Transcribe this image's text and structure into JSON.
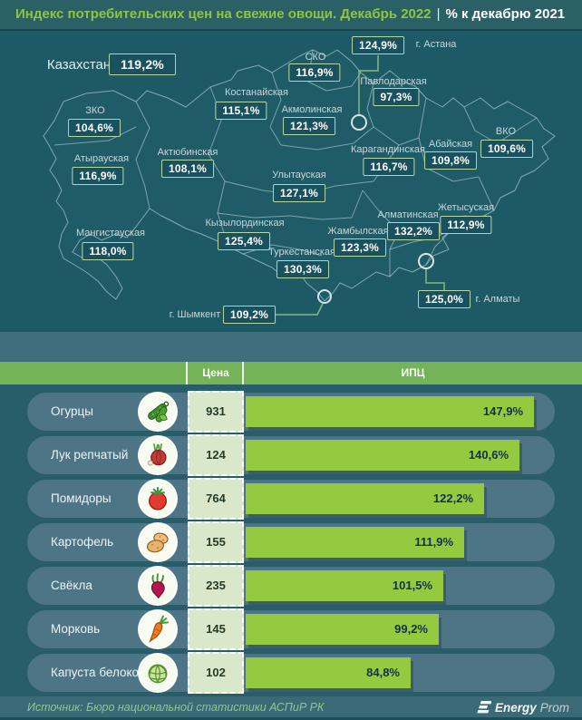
{
  "header": {
    "title_green": "Индекс потребительских цен на свежие овощи. Декабрь 2022",
    "divider": "|",
    "title_white": "% к декабрю 2021"
  },
  "map": {
    "regions": [
      {
        "label": "Казахстан",
        "value": "119,2%"
      },
      {
        "label": "г. Астана",
        "value": "124,9%"
      },
      {
        "label": "СКО",
        "value": "116,9%"
      },
      {
        "label": "Павлодарская",
        "value": "97,3%"
      },
      {
        "label": "Костанайская",
        "value": "115,1%"
      },
      {
        "label": "Акмолинская",
        "value": "121,3%"
      },
      {
        "label": "Актюбинская",
        "value": "108,1%"
      },
      {
        "label": "ЗКО",
        "value": "104,6%"
      },
      {
        "label": "Атырауская",
        "value": "116,9%"
      },
      {
        "label": "Улытауская",
        "value": "127,1%"
      },
      {
        "label": "Карагандинская",
        "value": "116,7%"
      },
      {
        "label": "Абайская",
        "value": "109,8%"
      },
      {
        "label": "ВКО",
        "value": "109,6%"
      },
      {
        "label": "Мангистауская",
        "value": "118,0%"
      },
      {
        "label": "Кызылординская",
        "value": "125,4%"
      },
      {
        "label": "Туркестанская",
        "value": "130,3%"
      },
      {
        "label": "Жамбылская",
        "value": "123,3%"
      },
      {
        "label": "Алматинская",
        "value": "132,2%"
      },
      {
        "label": "Жетысуская",
        "value": "112,9%"
      },
      {
        "label": "г. Шымкент",
        "value": "109,2%"
      },
      {
        "label": "г. Алматы",
        "value": "125,0%"
      }
    ]
  },
  "table": {
    "price_header": "Цена",
    "ipc_header": "ИПЦ",
    "rows": [
      {
        "name": "Огурцы",
        "icon": "cucumber-icon",
        "price": "931",
        "ipc": "147,9%"
      },
      {
        "name": "Лук репчатый",
        "icon": "onion-icon",
        "price": "124",
        "ipc": "140,6%"
      },
      {
        "name": "Помидоры",
        "icon": "tomato-icon",
        "price": "764",
        "ipc": "122,2%"
      },
      {
        "name": "Картофель",
        "icon": "potato-icon",
        "price": "155",
        "ipc": "111,9%"
      },
      {
        "name": "Свёкла",
        "icon": "beet-icon",
        "price": "235",
        "ipc": "101,5%"
      },
      {
        "name": "Морковь",
        "icon": "carrot-icon",
        "price": "145",
        "ipc": "99,2%"
      },
      {
        "name": "Капуста белокочанная",
        "icon": "cabbage-icon",
        "price": "102",
        "ipc": "84,8%"
      }
    ]
  },
  "footer": {
    "source": "Источник: Бюро национальной статистики АСПиР РК",
    "brand_bold": "Energy",
    "brand_light": "Prom"
  },
  "colors": {
    "accent_green": "#8ec63f",
    "bar_green": "#95c940",
    "header_band_green": "#74b357",
    "map_background": "#1e5a66",
    "row_pill": "#4e7585",
    "price_cell": "#d9e8ca"
  },
  "chart_data": {
    "type": "bar",
    "title": "Индекс потребительских цен на свежие овощи. Декабрь 2022 | % к декабрю 2021",
    "categories": [
      "Огурцы",
      "Лук репчатый",
      "Помидоры",
      "Картофель",
      "Свёкла",
      "Морковь",
      "Капуста белокочанная"
    ],
    "series": [
      {
        "name": "Цена",
        "values": [
          931,
          124,
          764,
          155,
          235,
          145,
          102
        ]
      },
      {
        "name": "ИПЦ, % к декабрю 2021",
        "values": [
          147.9,
          140.6,
          122.2,
          111.9,
          101.5,
          99.2,
          84.8
        ]
      }
    ],
    "xlabel": "",
    "ylabel": "ИПЦ",
    "legend_position": "top",
    "grid": false,
    "map_choropleth": {
      "Казахстан": 119.2,
      "г. Астана": 124.9,
      "СКО": 116.9,
      "Павлодарская": 97.3,
      "Костанайская": 115.1,
      "Акмолинская": 121.3,
      "Актюбинская": 108.1,
      "ЗКО": 104.6,
      "Атырауская": 116.9,
      "Улытауская": 127.1,
      "Карагандинская": 116.7,
      "Абайская": 109.8,
      "ВКО": 109.6,
      "Мангистауская": 118.0,
      "Кызылординская": 125.4,
      "Туркестанская": 130.3,
      "Жамбылская": 123.3,
      "Алматинская": 132.2,
      "Жетысуская": 112.9,
      "г. Шымкент": 109.2,
      "г. Алматы": 125.0
    }
  }
}
